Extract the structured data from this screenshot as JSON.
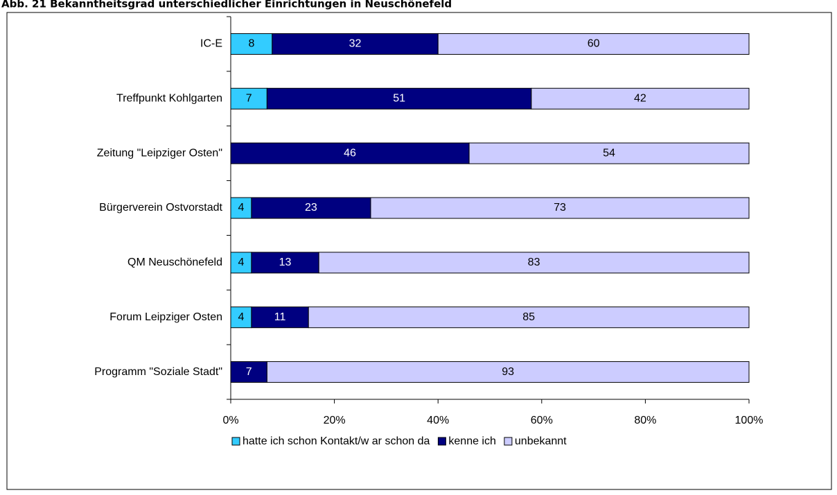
{
  "chart_data": {
    "type": "stacked-barh",
    "title": "Abb. 21 Bekanntheitsgrad unterschiedlicher Einrichtungen in Neuschönefeld",
    "categories": [
      "IC-E",
      "Treffpunkt Kohlgarten",
      "Zeitung \"Leipziger Osten\"",
      "Bürgerverein Ostvorstadt",
      "QM Neuschönefeld",
      "Forum Leipziger Osten",
      "Programm \"Soziale Stadt\""
    ],
    "series": [
      {
        "name": "hatte ich schon Kontakt/w ar schon da",
        "color": "#33ccff",
        "values": [
          8,
          7,
          null,
          4,
          4,
          4,
          null
        ]
      },
      {
        "name": "kenne ich",
        "color": "#000080",
        "values": [
          32,
          51,
          46,
          23,
          13,
          11,
          7
        ]
      },
      {
        "name": "unbekannt",
        "color": "#ccccff",
        "values": [
          60,
          42,
          54,
          73,
          83,
          85,
          93
        ]
      }
    ],
    "xlim": [
      0,
      100
    ],
    "xticks": [
      {
        "value": 0,
        "label": "0%"
      },
      {
        "value": 20,
        "label": "20%"
      },
      {
        "value": 40,
        "label": "40%"
      },
      {
        "value": 60,
        "label": "60%"
      },
      {
        "value": 80,
        "label": "80%"
      },
      {
        "value": 100,
        "label": "100%"
      }
    ],
    "legend": "bottom"
  }
}
